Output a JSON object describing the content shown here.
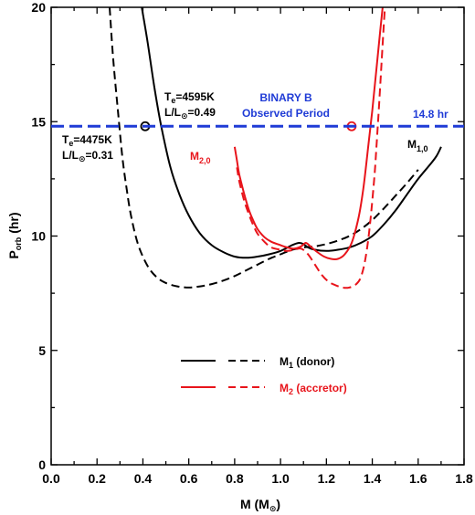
{
  "colors": {
    "m1": "#000000",
    "m2": "#e8141b",
    "observed": "#1f3bd6",
    "axis": "#000000"
  },
  "chart_data": {
    "type": "line",
    "xlabel": "M (M",
    "xlabel_unit_symbol": "⊙",
    "xlabel_close": ")",
    "ylabel_main": "P",
    "ylabel_sub": "orb",
    "ylabel_unit": " (hr)",
    "xlim": [
      0.0,
      1.8
    ],
    "ylim": [
      0,
      20
    ],
    "x_ticks": [
      {
        "v": 0.0,
        "label": "0.0"
      },
      {
        "v": 0.2,
        "label": "0.2"
      },
      {
        "v": 0.4,
        "label": "0.4"
      },
      {
        "v": 0.6,
        "label": "0.6"
      },
      {
        "v": 0.8,
        "label": "0.8"
      },
      {
        "v": 1.0,
        "label": "1.0"
      },
      {
        "v": 1.2,
        "label": "1.2"
      },
      {
        "v": 1.4,
        "label": "1.4"
      },
      {
        "v": 1.6,
        "label": "1.6"
      },
      {
        "v": 1.8,
        "label": "1.8"
      }
    ],
    "y_ticks": [
      {
        "v": 0,
        "label": "0"
      },
      {
        "v": 5,
        "label": "5"
      },
      {
        "v": 10,
        "label": "10"
      },
      {
        "v": 15,
        "label": "15"
      },
      {
        "v": 20,
        "label": "20"
      }
    ],
    "grid": false,
    "observed_period": {
      "value": 14.8,
      "label": "14.8 hr",
      "title_line1": "BINARY B",
      "title_line2": "Observed Period"
    },
    "series": [
      {
        "name": "M1 solid",
        "color_key": "m1",
        "dash": false,
        "x": [
          0.395,
          0.42,
          0.45,
          0.48,
          0.52,
          0.56,
          0.6,
          0.65,
          0.7,
          0.75,
          0.8,
          0.85,
          0.9,
          0.95,
          1.0,
          1.05,
          1.08,
          1.1,
          1.12,
          1.15,
          1.2,
          1.25,
          1.3,
          1.35,
          1.4,
          1.45,
          1.5,
          1.55,
          1.6,
          1.65,
          1.68,
          1.7
        ],
        "y": [
          20.0,
          18.5,
          16.5,
          14.8,
          13.0,
          11.8,
          10.9,
          10.1,
          9.6,
          9.3,
          9.1,
          9.05,
          9.1,
          9.2,
          9.35,
          9.6,
          9.7,
          9.65,
          9.5,
          9.4,
          9.35,
          9.4,
          9.5,
          9.7,
          10.0,
          10.5,
          11.1,
          11.8,
          12.5,
          13.1,
          13.5,
          13.9
        ]
      },
      {
        "name": "M1 dashed",
        "color_key": "m1",
        "dash": true,
        "x": [
          0.255,
          0.27,
          0.29,
          0.31,
          0.33,
          0.35,
          0.38,
          0.42,
          0.46,
          0.5,
          0.55,
          0.6,
          0.65,
          0.7,
          0.75,
          0.8,
          0.85,
          0.9,
          0.95,
          1.0,
          1.05,
          1.1,
          1.15,
          1.2,
          1.25,
          1.3,
          1.35,
          1.4,
          1.45,
          1.5,
          1.55,
          1.6
        ],
        "y": [
          20.0,
          17.8,
          15.6,
          13.5,
          12.0,
          10.8,
          9.6,
          8.7,
          8.2,
          7.95,
          7.8,
          7.75,
          7.8,
          7.9,
          8.05,
          8.25,
          8.5,
          8.75,
          9.0,
          9.2,
          9.4,
          9.5,
          9.55,
          9.65,
          9.8,
          10.0,
          10.3,
          10.7,
          11.2,
          11.75,
          12.3,
          12.9
        ]
      },
      {
        "name": "M2 solid",
        "color_key": "m2",
        "dash": false,
        "x": [
          0.8,
          0.81,
          0.82,
          0.84,
          0.86,
          0.88,
          0.9,
          0.93,
          0.96,
          1.0,
          1.03,
          1.06,
          1.09,
          1.11,
          1.13,
          1.16,
          1.19,
          1.22,
          1.25,
          1.28,
          1.31,
          1.34,
          1.36,
          1.38,
          1.4,
          1.42,
          1.435,
          1.445
        ],
        "y": [
          13.9,
          13.3,
          12.7,
          11.9,
          11.2,
          10.7,
          10.3,
          9.95,
          9.75,
          9.6,
          9.5,
          9.45,
          9.55,
          9.7,
          9.55,
          9.3,
          9.1,
          9.0,
          9.0,
          9.2,
          9.7,
          10.8,
          12.0,
          13.7,
          15.5,
          17.5,
          19.0,
          20.0
        ]
      },
      {
        "name": "M2 dashed",
        "color_key": "m2",
        "dash": true,
        "x": [
          0.81,
          0.82,
          0.84,
          0.86,
          0.88,
          0.9,
          0.93,
          0.96,
          1.0,
          1.03,
          1.06,
          1.09,
          1.12,
          1.15,
          1.18,
          1.21,
          1.24,
          1.27,
          1.3,
          1.33,
          1.35,
          1.37,
          1.39,
          1.41,
          1.42,
          1.43,
          1.44,
          1.45,
          1.455
        ],
        "y": [
          13.0,
          12.4,
          11.6,
          11.0,
          10.5,
          10.1,
          9.75,
          9.5,
          9.4,
          9.35,
          9.4,
          9.45,
          9.2,
          8.75,
          8.3,
          8.0,
          7.85,
          7.75,
          7.75,
          7.9,
          8.2,
          9.0,
          10.5,
          12.7,
          14.2,
          15.8,
          17.5,
          19.2,
          20.0
        ]
      }
    ],
    "markers": [
      {
        "x": 0.41,
        "y": 14.8,
        "color_key": "m1"
      },
      {
        "x": 1.31,
        "y": 14.8,
        "color_key": "m2"
      }
    ],
    "annotations": {
      "te1_prefix": "T",
      "te1_sub": "e",
      "te1_value": "=4595K",
      "l1_prefix": "L/L",
      "l1_sub": "⊙",
      "l1_value": "=0.49",
      "te2_prefix": "T",
      "te2_sub": "e",
      "te2_value": "=4475K",
      "l2_prefix": "L/L",
      "l2_sub": "⊙",
      "l2_value": "=0.31",
      "m10_main": "M",
      "m10_sub": "1,0",
      "m20_main": "M",
      "m20_sub": "2,0"
    },
    "legend": {
      "m1_main": "M",
      "m1_sub": "1",
      "m1_rest": " (donor)",
      "m2_main": "M",
      "m2_sub": "2",
      "m2_rest": " (accretor)"
    }
  }
}
